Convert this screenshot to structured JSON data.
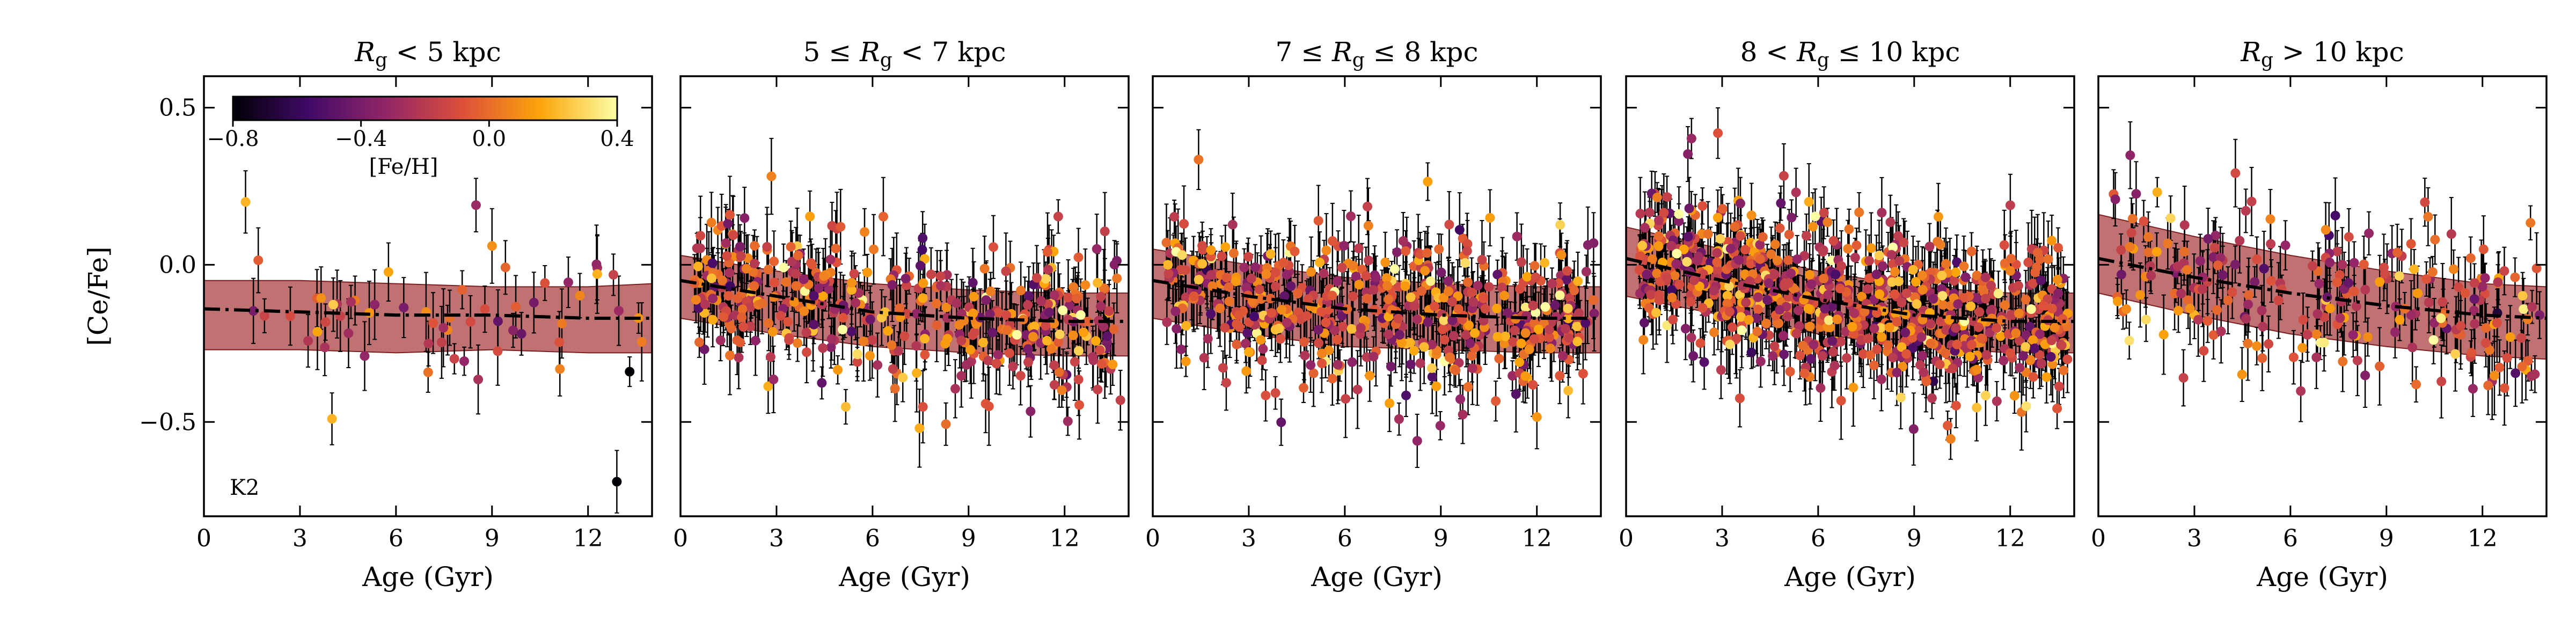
{
  "chart_data": {
    "type": "scatter",
    "ylabel": "[Ce/Fe]",
    "xlabel": "Age (Gyr)",
    "xlim": [
      0,
      14
    ],
    "ylim": [
      -0.8,
      0.6
    ],
    "xticks": [
      0,
      3,
      6,
      9,
      12
    ],
    "xtick_labels": [
      "0",
      "3",
      "6",
      "9",
      "12"
    ],
    "yticks": [
      0.5,
      0.0,
      -0.5
    ],
    "ytick_labels": [
      "0.5",
      "0.0",
      "−0.5"
    ],
    "colorbar": {
      "label": "[Fe/H]",
      "range": [
        -0.8,
        0.4
      ],
      "ticks": [
        -0.8,
        -0.4,
        0.0,
        0.4
      ],
      "tick_labels": [
        "−0.8",
        "−0.4",
        "0.0",
        "0.4"
      ],
      "colormap": [
        "#000004",
        "#420a68",
        "#932667",
        "#dd513a",
        "#fca50a",
        "#fcffa4"
      ]
    },
    "band_color": "#a83a3a",
    "panels": [
      {
        "title_pre": "",
        "title_sym": "R",
        "title_sub": "g",
        "title_post": " < 5 kpc",
        "annotation": "K2",
        "trend": [
          [
            0,
            -0.14
          ],
          [
            3,
            -0.15
          ],
          [
            6,
            -0.16
          ],
          [
            9,
            -0.16
          ],
          [
            12,
            -0.17
          ],
          [
            14,
            -0.17
          ]
        ],
        "band_upper": [
          [
            0,
            -0.05
          ],
          [
            3,
            -0.05
          ],
          [
            6,
            -0.06
          ],
          [
            9,
            -0.07
          ],
          [
            12,
            -0.07
          ],
          [
            14,
            -0.06
          ]
        ],
        "band_lower": [
          [
            0,
            -0.27
          ],
          [
            3,
            -0.27
          ],
          [
            6,
            -0.28
          ],
          [
            9,
            -0.27
          ],
          [
            12,
            -0.28
          ],
          [
            14,
            -0.28
          ]
        ],
        "n_points": 55,
        "scatter_sigma": 0.11,
        "points": [
          {
            "x": 1.3,
            "y": 0.2,
            "feh": 0.2
          },
          {
            "x": 8.5,
            "y": 0.19,
            "feh": -0.3
          },
          {
            "x": 9.0,
            "y": 0.06,
            "feh": 0.1
          },
          {
            "x": 4.0,
            "y": -0.49,
            "feh": 0.2
          },
          {
            "x": 13.3,
            "y": -0.34,
            "feh": -0.8
          },
          {
            "x": 12.9,
            "y": -0.69,
            "feh": -0.8
          }
        ]
      },
      {
        "title_pre": "5 ≤ ",
        "title_sym": "R",
        "title_sub": "g",
        "title_post": " < 7 kpc",
        "annotation": "",
        "trend": [
          [
            0,
            -0.05
          ],
          [
            3,
            -0.1
          ],
          [
            6,
            -0.15
          ],
          [
            9,
            -0.17
          ],
          [
            12,
            -0.18
          ],
          [
            14,
            -0.18
          ]
        ],
        "band_upper": [
          [
            0,
            0.03
          ],
          [
            3,
            -0.02
          ],
          [
            6,
            -0.06
          ],
          [
            9,
            -0.08
          ],
          [
            12,
            -0.09
          ],
          [
            14,
            -0.09
          ]
        ],
        "band_lower": [
          [
            0,
            -0.17
          ],
          [
            3,
            -0.22
          ],
          [
            6,
            -0.26
          ],
          [
            9,
            -0.28
          ],
          [
            12,
            -0.29
          ],
          [
            14,
            -0.29
          ]
        ],
        "n_points": 420,
        "scatter_sigma": 0.12,
        "points": []
      },
      {
        "title_pre": "7 ≤ ",
        "title_sym": "R",
        "title_sub": "g",
        "title_post": " ≤ 8 kpc",
        "annotation": "",
        "trend": [
          [
            0,
            -0.05
          ],
          [
            3,
            -0.1
          ],
          [
            6,
            -0.14
          ],
          [
            9,
            -0.16
          ],
          [
            12,
            -0.17
          ],
          [
            14,
            -0.17
          ]
        ],
        "band_upper": [
          [
            0,
            0.05
          ],
          [
            3,
            0.0
          ],
          [
            6,
            -0.04
          ],
          [
            9,
            -0.06
          ],
          [
            12,
            -0.07
          ],
          [
            14,
            -0.07
          ]
        ],
        "band_lower": [
          [
            0,
            -0.17
          ],
          [
            3,
            -0.22
          ],
          [
            6,
            -0.26
          ],
          [
            9,
            -0.27
          ],
          [
            12,
            -0.28
          ],
          [
            14,
            -0.28
          ]
        ],
        "n_points": 520,
        "scatter_sigma": 0.12,
        "points": []
      },
      {
        "title_pre": "8 < ",
        "title_sym": "R",
        "title_sub": "g",
        "title_post": " ≤ 10 kpc",
        "annotation": "",
        "trend": [
          [
            0,
            0.02
          ],
          [
            3,
            -0.05
          ],
          [
            6,
            -0.11
          ],
          [
            9,
            -0.16
          ],
          [
            12,
            -0.18
          ],
          [
            14,
            -0.18
          ]
        ],
        "band_upper": [
          [
            0,
            0.12
          ],
          [
            3,
            0.05
          ],
          [
            6,
            -0.02
          ],
          [
            9,
            -0.07
          ],
          [
            12,
            -0.09
          ],
          [
            14,
            -0.09
          ]
        ],
        "band_lower": [
          [
            0,
            -0.1
          ],
          [
            3,
            -0.16
          ],
          [
            6,
            -0.22
          ],
          [
            9,
            -0.26
          ],
          [
            12,
            -0.28
          ],
          [
            14,
            -0.28
          ]
        ],
        "n_points": 800,
        "scatter_sigma": 0.13,
        "points": []
      },
      {
        "title_pre": "",
        "title_sym": "R",
        "title_sub": "g",
        "title_post": " > 10 kpc",
        "annotation": "",
        "trend": [
          [
            0,
            0.02
          ],
          [
            3,
            -0.04
          ],
          [
            6,
            -0.09
          ],
          [
            9,
            -0.13
          ],
          [
            12,
            -0.16
          ],
          [
            14,
            -0.17
          ]
        ],
        "band_upper": [
          [
            0,
            0.16
          ],
          [
            3,
            0.09
          ],
          [
            6,
            0.03
          ],
          [
            9,
            -0.02
          ],
          [
            12,
            -0.06
          ],
          [
            14,
            -0.07
          ]
        ],
        "band_lower": [
          [
            0,
            -0.09
          ],
          [
            3,
            -0.16
          ],
          [
            6,
            -0.22
          ],
          [
            9,
            -0.26
          ],
          [
            12,
            -0.29
          ],
          [
            14,
            -0.3
          ]
        ],
        "n_points": 230,
        "scatter_sigma": 0.13,
        "points": []
      }
    ]
  }
}
